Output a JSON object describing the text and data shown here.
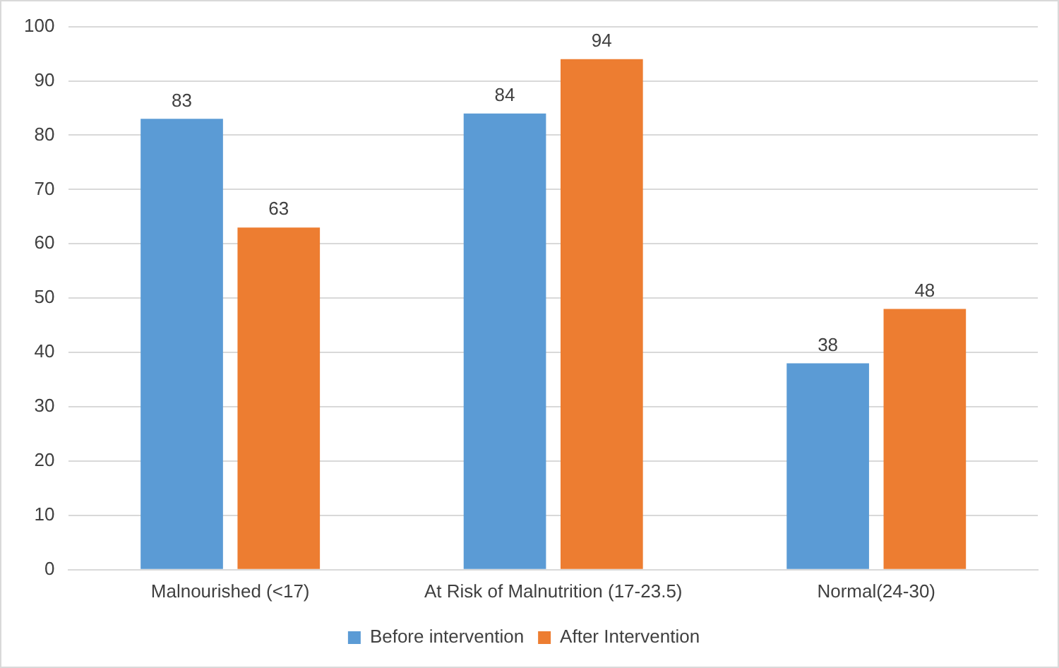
{
  "chart_data": {
    "type": "bar",
    "categories": [
      "Malnourished (<17)",
      "At Risk of Malnutrition (17-23.5)",
      "Normal(24-30)"
    ],
    "series": [
      {
        "name": "Before intervention",
        "color": "#5b9bd5",
        "values": [
          83,
          84,
          38
        ]
      },
      {
        "name": "After Intervention",
        "color": "#ed7d31",
        "values": [
          63,
          94,
          48
        ]
      }
    ],
    "ylim": [
      0,
      100
    ],
    "yticks": [
      0,
      10,
      20,
      30,
      40,
      50,
      60,
      70,
      80,
      90,
      100
    ],
    "grid": "y",
    "legend": "bottom",
    "data_labels": true
  }
}
